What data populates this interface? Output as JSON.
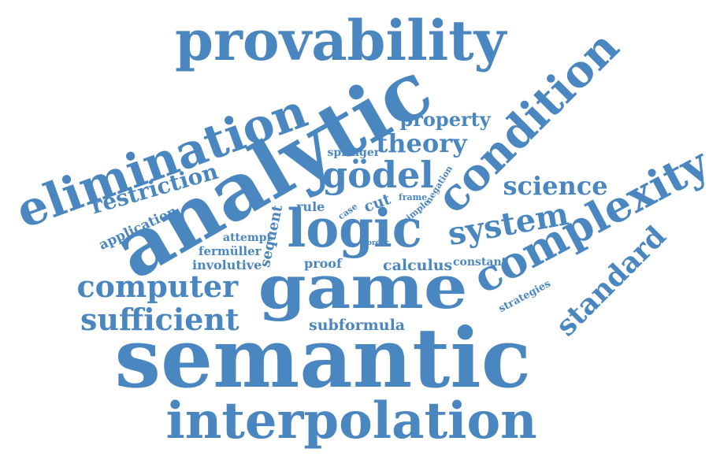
{
  "cloud": {
    "color": "#4a86bf",
    "words": [
      {
        "id": "provability",
        "text": "provability"
      },
      {
        "id": "analytic",
        "text": "analytic"
      },
      {
        "id": "elimination",
        "text": "elimination"
      },
      {
        "id": "condition",
        "text": "condition"
      },
      {
        "id": "complexity",
        "text": "complexity"
      },
      {
        "id": "logic",
        "text": "logic"
      },
      {
        "id": "game",
        "text": "game"
      },
      {
        "id": "semantic",
        "text": "semantic"
      },
      {
        "id": "interpolation",
        "text": "interpolation"
      },
      {
        "id": "godel",
        "text": "gödel"
      },
      {
        "id": "system",
        "text": "system"
      },
      {
        "id": "theory",
        "text": "theory"
      },
      {
        "id": "property",
        "text": "property"
      },
      {
        "id": "science",
        "text": "science"
      },
      {
        "id": "standard",
        "text": "standard"
      },
      {
        "id": "restriction",
        "text": "restriction"
      },
      {
        "id": "computer",
        "text": "computer"
      },
      {
        "id": "sufficient",
        "text": "sufficient"
      },
      {
        "id": "application",
        "text": "application"
      },
      {
        "id": "sequent",
        "text": "sequent"
      },
      {
        "id": "springer",
        "text": "springer"
      },
      {
        "id": "negation",
        "text": "negation"
      },
      {
        "id": "frame",
        "text": "frame"
      },
      {
        "id": "simple",
        "text": "simple"
      },
      {
        "id": "rule",
        "text": "rule"
      },
      {
        "id": "case",
        "text": "case"
      },
      {
        "id": "cut",
        "text": "cut"
      },
      {
        "id": "attempt",
        "text": "attempt"
      },
      {
        "id": "fermuller",
        "text": "fermüller"
      },
      {
        "id": "involutive",
        "text": "involutive"
      },
      {
        "id": "order",
        "text": "order"
      },
      {
        "id": "proof",
        "text": "proof"
      },
      {
        "id": "calculus",
        "text": "calculus"
      },
      {
        "id": "constant",
        "text": "constant"
      },
      {
        "id": "strategies",
        "text": "strategies"
      },
      {
        "id": "subformula",
        "text": "subformula"
      }
    ]
  }
}
